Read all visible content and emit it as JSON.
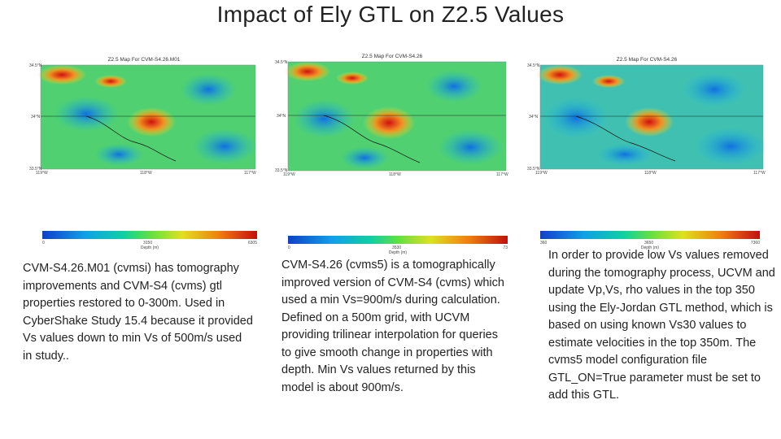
{
  "title": "Impact of Ely GTL on Z2.5 Values",
  "panels": [
    {
      "map_title": "Z2.5 Map For CVM-S4.26.M01",
      "lat_top": "34.5°N",
      "lat_mid": "34°N",
      "lat_bottom": "33.5°N",
      "lon_left": "119°W",
      "lon_mid": "118°W",
      "lon_right": "117°W",
      "cbar_min": "0",
      "cbar_mid": "3150",
      "cbar_max": "6305",
      "cbar_label": "Depth (m)",
      "description": "CVM-S4.26.M01 (cvmsi) has tomography improvements and CVM-S4 (cvms) gtl properties restored to 0-300m. Used in CyberShake Study 15.4 because it provided Vs values down to min Vs of 500m/s used in study.."
    },
    {
      "map_title": "Z2.5 Map For CVM-S4.26",
      "lat_top": "34.5°N",
      "lat_mid": "34°N",
      "lat_bottom": "33.5°N",
      "lon_left": "119°W",
      "lon_mid": "118°W",
      "lon_right": "117°W",
      "cbar_min": "0",
      "cbar_mid": "3530",
      "cbar_max": "73",
      "cbar_label": "Depth (m)",
      "description": "CVM-S4.26 (cvms5) is a tomographically improved version of CVM-S4 (cvms) which used a min Vs=900m/s during calculation. Defined on a 500m grid, with UCVM providing trilinear interpolation for queries to give smooth change in properties with depth. Min Vs values returned by this model is about 900m/s."
    },
    {
      "map_title": "Z2.5 Map For CVM-S4.26",
      "lat_top": "34.5°N",
      "lat_mid": "34°N",
      "lat_bottom": "33.5°N",
      "lon_left": "119°W",
      "lon_mid": "118°W",
      "lon_right": "117°W",
      "cbar_min": "360",
      "cbar_mid": "3650",
      "cbar_max": "7360",
      "cbar_label": "Depth (m)",
      "description": "In order to provide low Vs values removed during the tomography process, UCVM and update Vp,Vs, rho values in the top 350 using the Ely-Jordan GTL method, which is based on using known Vs30 values to estimate velocities in the top 350m. The cvms5 model configuration file GTL_ON=True parameter must be set to add this GTL."
    }
  ]
}
